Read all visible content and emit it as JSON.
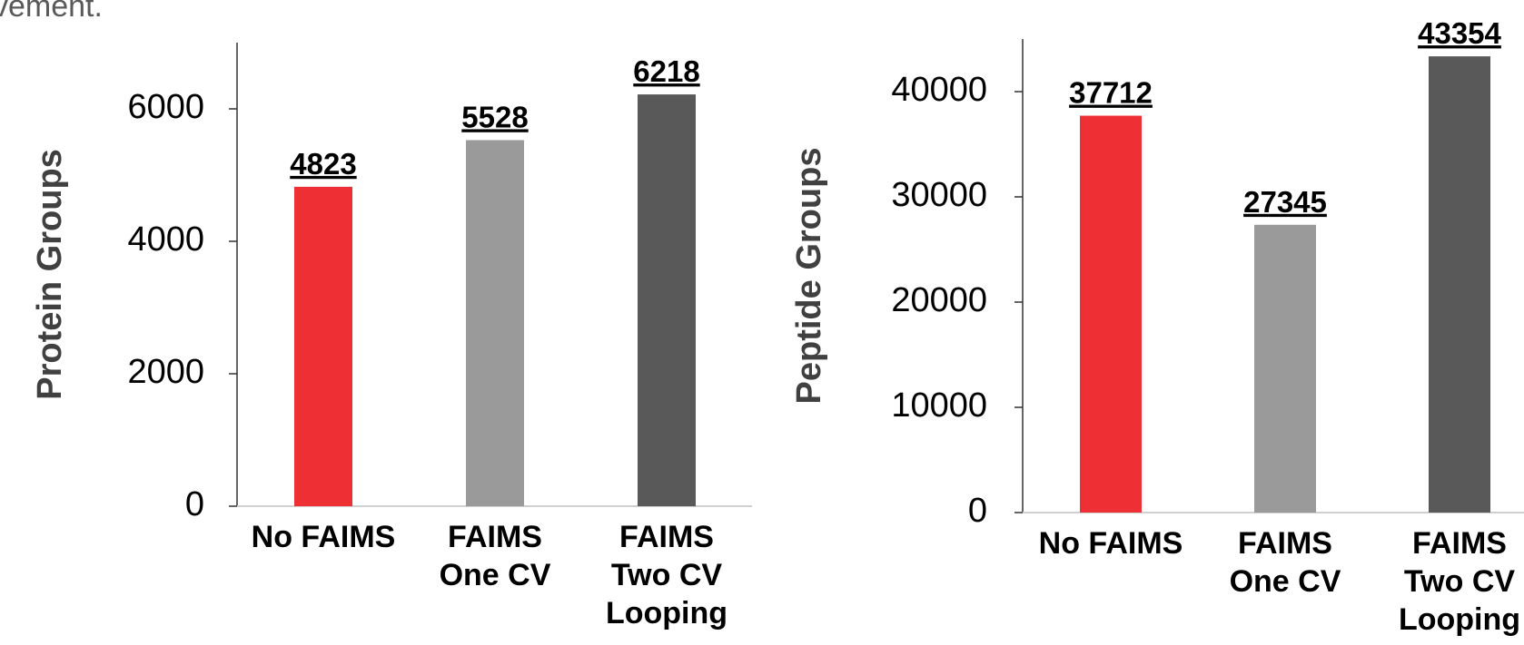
{
  "text_above": "vement.",
  "chart_data": [
    {
      "type": "bar",
      "y_label": "Protein Groups",
      "categories": [
        [
          "No FAIMS"
        ],
        [
          "FAIMS",
          "One CV"
        ],
        [
          "FAIMS",
          "Two CV",
          "Looping"
        ]
      ],
      "values": [
        4823,
        5528,
        6218
      ],
      "colors": [
        "#ee3035",
        "#9a9a9b",
        "#595959"
      ],
      "ylim": [
        0,
        7000
      ],
      "yticks": [
        0,
        2000,
        4000,
        6000
      ]
    },
    {
      "type": "bar",
      "y_label": "Peptide Groups",
      "categories": [
        [
          "No FAIMS"
        ],
        [
          "FAIMS",
          "One CV"
        ],
        [
          "FAIMS",
          "Two CV",
          "Looping"
        ]
      ],
      "values": [
        37712,
        27345,
        43354
      ],
      "colors": [
        "#ee3035",
        "#9a9a9b",
        "#595959"
      ],
      "ylim": [
        0,
        45000
      ],
      "yticks": [
        0,
        10000,
        20000,
        30000,
        40000
      ]
    }
  ]
}
